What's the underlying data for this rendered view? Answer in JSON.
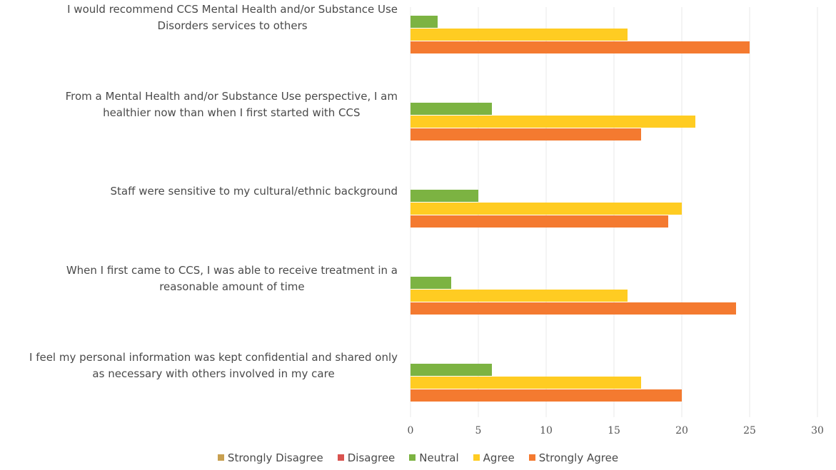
{
  "chart_data": {
    "type": "bar",
    "orientation": "horizontal",
    "title": "",
    "xlabel": "",
    "ylabel": "",
    "xlim": [
      0,
      30
    ],
    "x_ticks": [
      0,
      5,
      10,
      15,
      20,
      25,
      30
    ],
    "grid": true,
    "legend_position": "bottom",
    "categories": [
      [
        "I would recommend CCS Mental Health and/or Substance Use",
        "Disorders services to others"
      ],
      [
        "From a Mental Health and/or Substance Use perspective, I am",
        "healthier now than when I first started with CCS"
      ],
      [
        "Staff were sensitive to my cultural/ethnic background"
      ],
      [
        "When I first came to CCS, I was able to receive treatment in a",
        "reasonable amount of time"
      ],
      [
        "I feel my personal information was kept confidential and shared only",
        "as necessary with others involved in my care"
      ]
    ],
    "series": [
      {
        "name": "Strongly Disagree",
        "color": "#c8a050",
        "values": [
          0,
          0,
          0,
          0,
          0
        ]
      },
      {
        "name": "Disagree",
        "color": "#d9534f",
        "values": [
          0,
          0,
          0,
          0,
          0
        ]
      },
      {
        "name": "Neutral",
        "color": "#7cb342",
        "values": [
          2,
          6,
          5,
          3,
          6
        ]
      },
      {
        "name": "Agree",
        "color": "#ffcc22",
        "values": [
          16,
          21,
          20,
          16,
          17
        ]
      },
      {
        "name": "Strongly Agree",
        "color": "#f47a30",
        "values": [
          25,
          17,
          19,
          24,
          20
        ]
      }
    ]
  }
}
